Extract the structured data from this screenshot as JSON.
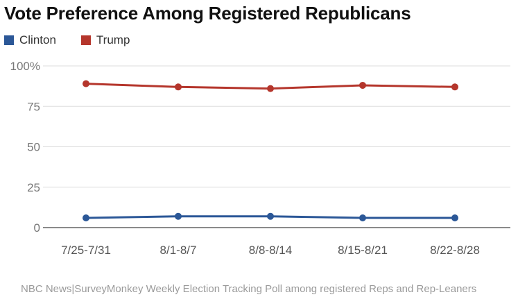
{
  "chart_data": {
    "type": "line",
    "title": "Vote Preference Among Registered Republicans",
    "categories": [
      "7/25-7/31",
      "8/1-8/7",
      "8/8-8/14",
      "8/15-8/21",
      "8/22-8/28"
    ],
    "series": [
      {
        "name": "Clinton",
        "color": "#2b5797",
        "values": [
          6,
          7,
          7,
          6,
          6
        ]
      },
      {
        "name": "Trump",
        "color": "#b5362c",
        "values": [
          89,
          87,
          86,
          88,
          87
        ]
      }
    ],
    "ylim": [
      0,
      100
    ],
    "yticks": [
      0,
      25,
      50,
      75,
      100
    ],
    "ytick_labels": [
      "0",
      "25",
      "50",
      "75",
      "100%"
    ],
    "xlabel": "",
    "ylabel": "",
    "grid": true,
    "legend_position": "top-left"
  },
  "source": "NBC News|SurveyMonkey Weekly Election Tracking Poll among registered Reps and Rep-Leaners"
}
